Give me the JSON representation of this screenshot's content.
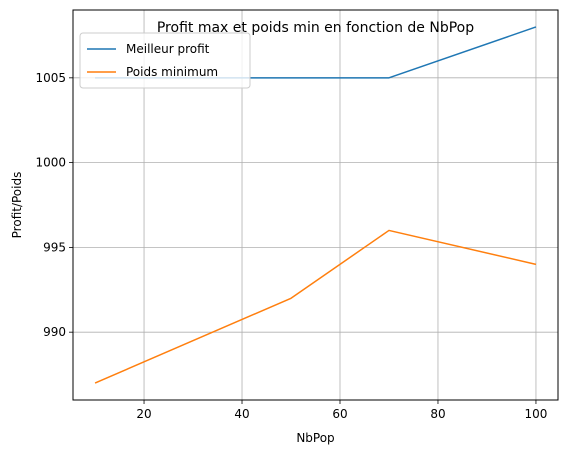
{
  "chart_data": {
    "type": "line",
    "title": "Profit max et poids min en fonction de NbPop",
    "xlabel": "NbPop",
    "ylabel": "Profit/Poids",
    "xlim": [
      5.5,
      104.5
    ],
    "ylim": [
      986.0,
      1009.0
    ],
    "xticks": [
      20,
      40,
      60,
      80,
      100
    ],
    "yticks": [
      990,
      995,
      1000,
      1005
    ],
    "grid": true,
    "legend_position": "upper left",
    "series": [
      {
        "name": "Meilleur profit",
        "color": "#1f77b4",
        "x": [
          10,
          30,
          50,
          70,
          100
        ],
        "y": [
          1005,
          1005,
          1005,
          1005,
          1008
        ]
      },
      {
        "name": "Poids minimum",
        "color": "#ff7f0e",
        "x": [
          10,
          50,
          70,
          100
        ],
        "y": [
          987,
          992,
          996,
          994
        ]
      }
    ]
  }
}
